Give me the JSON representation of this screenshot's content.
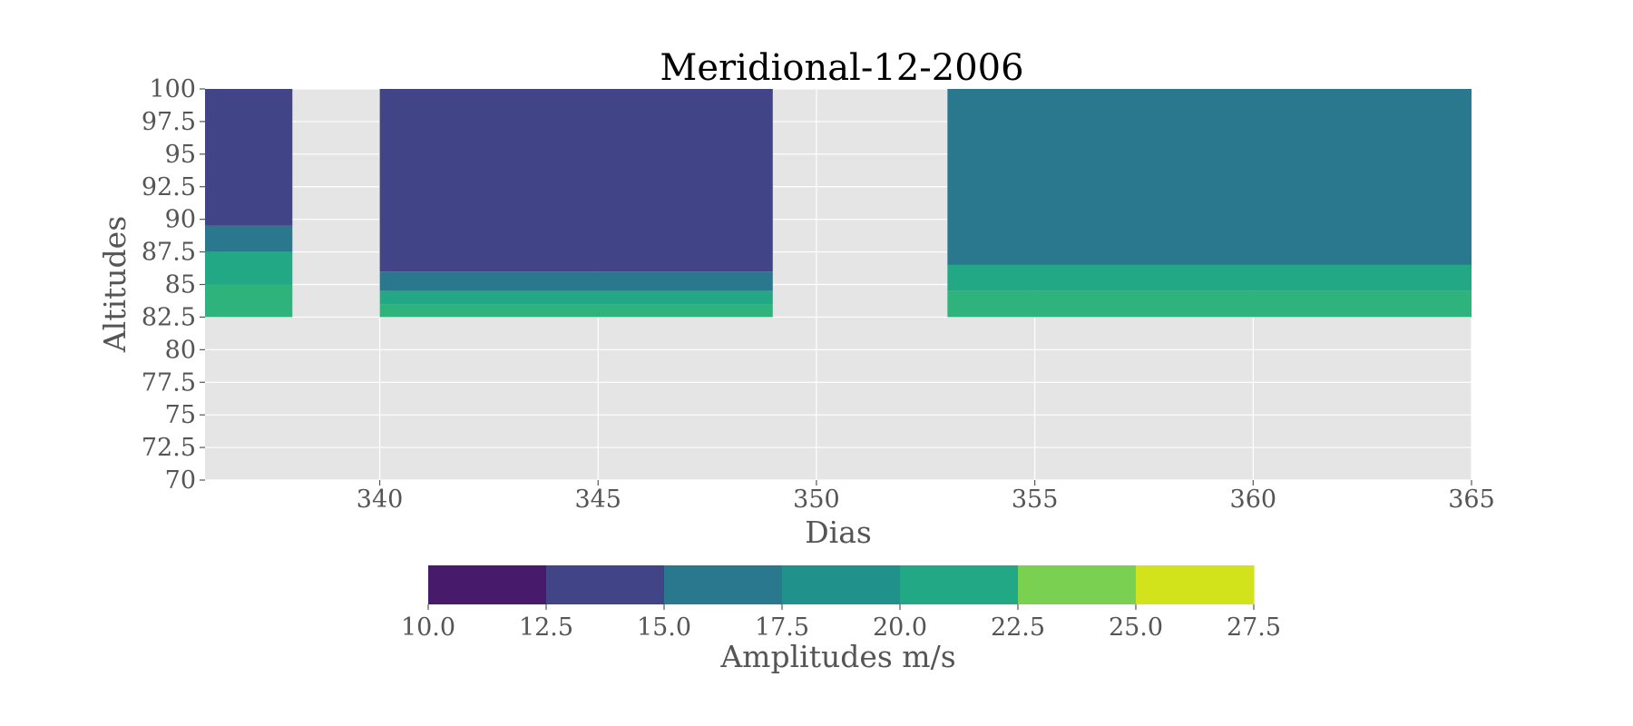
{
  "chart_data": {
    "type": "heatmap",
    "title": "Meridional-12-2006",
    "xlabel": "Dias",
    "ylabel": "Altitudes",
    "xlim": [
      336,
      365
    ],
    "ylim": [
      70,
      100
    ],
    "x_ticks": [
      "340",
      "345",
      "350",
      "355",
      "360",
      "365"
    ],
    "y_ticks": [
      "100",
      "97.5",
      "95",
      "92.5",
      "90",
      "87.5",
      "85",
      "82.5",
      "80",
      "77.5",
      "75",
      "72.5",
      "70"
    ],
    "grid": true,
    "background_color": "#e5e5e5",
    "grid_color": "#ffffff",
    "data_blocks": [
      {
        "x_range": [
          336,
          338
        ],
        "altitude_range": [
          82.5,
          100
        ],
        "layers": [
          {
            "color": "#414487",
            "from": 89.5
          },
          {
            "color": "#2a788e",
            "from": 87.5
          },
          {
            "color": "#22a884",
            "from": 85
          },
          {
            "color": "#2eb37c",
            "from": 82.5
          }
        ]
      },
      {
        "x_range": [
          340,
          349
        ],
        "altitude_range": [
          82.5,
          100
        ],
        "layers": [
          {
            "color": "#414487",
            "from": 86
          },
          {
            "color": "#2a788e",
            "from": 84.5
          },
          {
            "color": "#22a884",
            "from": 83.5
          },
          {
            "color": "#2eb37c",
            "from": 82.5
          }
        ]
      },
      {
        "x_range": [
          353,
          365
        ],
        "altitude_range": [
          82.5,
          100
        ],
        "layers": [
          {
            "color": "#2a788e",
            "from": 86.5
          },
          {
            "color": "#22a884",
            "from": 84.5
          },
          {
            "color": "#2eb37c",
            "from": 82.5
          }
        ]
      }
    ],
    "colorbar": {
      "label": "Amplitudes m/s",
      "levels": [
        "10.0",
        "12.5",
        "15.0",
        "17.5",
        "20.0",
        "22.5",
        "25.0",
        "27.5"
      ],
      "colors": [
        "#481a6c",
        "#414487",
        "#2a788e",
        "#21918c",
        "#22a884",
        "#7ad151",
        "#d2e21b"
      ]
    }
  }
}
